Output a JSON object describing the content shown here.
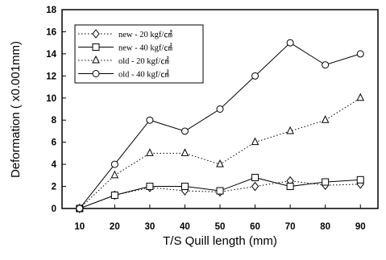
{
  "chart_data": {
    "type": "line",
    "title": "",
    "xlabel": "T/S Quill length (mm)",
    "ylabel": "Deformation ( x0.001mm)",
    "x": [
      10,
      20,
      30,
      40,
      50,
      60,
      70,
      80,
      90
    ],
    "xticks": [
      "10",
      "20",
      "30",
      "40",
      "50",
      "60",
      "70",
      "80",
      "90"
    ],
    "yticks": [
      "0",
      "2",
      "4",
      "6",
      "8",
      "10",
      "12",
      "14",
      "16",
      "18"
    ],
    "xlim": [
      5,
      95
    ],
    "ylim": [
      0,
      18
    ],
    "grid": false,
    "legend_position": "top-left",
    "series": [
      {
        "name": "new - 20 kgf/㎠",
        "marker": "diamond",
        "line_style": "dotted",
        "color": "#000000",
        "values": [
          0,
          1.2,
          1.9,
          1.6,
          1.5,
          2.0,
          2.5,
          2.1,
          2.2
        ]
      },
      {
        "name": "new - 40 kgf/㎠",
        "marker": "square",
        "line_style": "solid",
        "color": "#000000",
        "values": [
          0,
          1.2,
          2.0,
          2.0,
          1.6,
          2.8,
          2.0,
          2.4,
          2.6
        ]
      },
      {
        "name": "old - 20 kgf/㎠",
        "marker": "triangle",
        "line_style": "dotted",
        "color": "#000000",
        "values": [
          0,
          3.0,
          5.0,
          5.0,
          4.0,
          6.0,
          7.0,
          8.0,
          10.0
        ]
      },
      {
        "name": "old - 40 kgf/㎠",
        "marker": "circle",
        "line_style": "solid",
        "color": "#000000",
        "values": [
          0,
          4.0,
          8.0,
          7.0,
          9.0,
          12.0,
          15.0,
          13.0,
          14.0
        ]
      }
    ]
  }
}
